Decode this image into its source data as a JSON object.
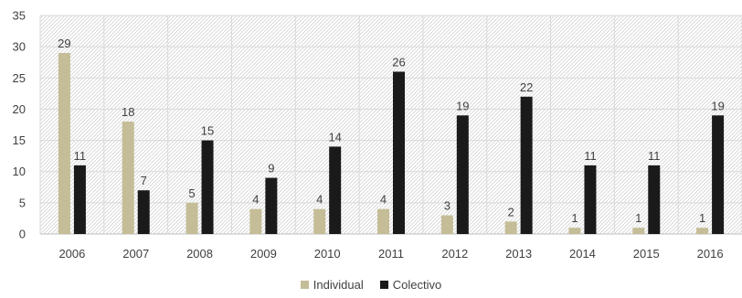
{
  "chart_data": {
    "type": "bar",
    "categories": [
      "2006",
      "2007",
      "2008",
      "2009",
      "2010",
      "2011",
      "2012",
      "2013",
      "2014",
      "2015",
      "2016"
    ],
    "series": [
      {
        "name": "Individual",
        "color": "#c4bd97",
        "values": [
          29,
          18,
          5,
          4,
          4,
          4,
          3,
          2,
          1,
          1,
          1
        ]
      },
      {
        "name": "Colectivo",
        "color": "#1a1a1a",
        "values": [
          11,
          7,
          15,
          9,
          14,
          26,
          19,
          22,
          11,
          11,
          19
        ]
      }
    ],
    "ylim": [
      0,
      35
    ],
    "yticks": [
      0,
      5,
      10,
      15,
      20,
      25,
      30,
      35
    ],
    "grid": true,
    "legend_position": "bottom-center",
    "data_labels": true
  }
}
